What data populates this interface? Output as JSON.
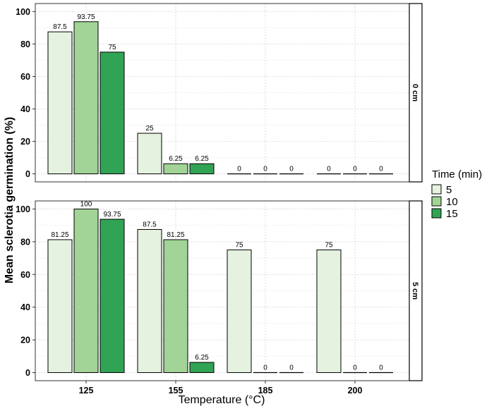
{
  "chart_data": {
    "type": "bar",
    "xlabel": "Temperature (°C)",
    "ylabel": "Mean sclerotia germination (%)",
    "categories": [
      "125",
      "155",
      "185",
      "200"
    ],
    "ylim": [
      0,
      100
    ],
    "yticks": [
      "0",
      "20",
      "40",
      "60",
      "80",
      "100"
    ],
    "legend": {
      "title": "Time (min)",
      "position": "right"
    },
    "grid": true,
    "colors": [
      "#e5f2df",
      "#a1d496",
      "#31a354"
    ],
    "series_names": [
      "5",
      "10",
      "15"
    ],
    "facets": [
      {
        "strip": "0 cm",
        "series": [
          {
            "name": "5",
            "values": [
              87.5,
              25,
              0,
              0
            ],
            "labels": [
              "87.5",
              "25",
              "0",
              "0"
            ]
          },
          {
            "name": "10",
            "values": [
              93.75,
              6.25,
              0,
              0
            ],
            "labels": [
              "93.75",
              "6.25",
              "0",
              "0"
            ]
          },
          {
            "name": "15",
            "values": [
              75,
              6.25,
              0,
              0
            ],
            "labels": [
              "75",
              "6.25",
              "0",
              "0"
            ]
          }
        ]
      },
      {
        "strip": "5 cm",
        "series": [
          {
            "name": "5",
            "values": [
              81.25,
              87.5,
              75,
              75
            ],
            "labels": [
              "81.25",
              "87.5",
              "75",
              "75"
            ]
          },
          {
            "name": "10",
            "values": [
              100,
              81.25,
              0,
              0
            ],
            "labels": [
              "100",
              "81.25",
              "0",
              "0"
            ]
          },
          {
            "name": "15",
            "values": [
              93.75,
              6.25,
              0,
              0
            ],
            "labels": [
              "93.75",
              "6.25",
              "0",
              "0"
            ]
          }
        ]
      }
    ]
  }
}
